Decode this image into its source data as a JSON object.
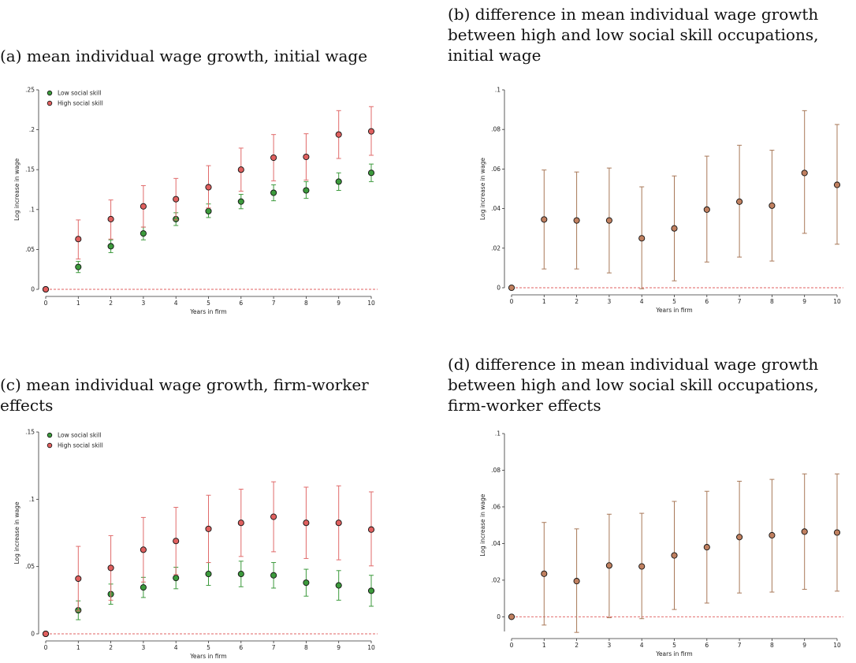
{
  "panels": {
    "a": {
      "title": "(a) mean individual wage growth, initial wage"
    },
    "b": {
      "title": "(b) difference in mean individual wage growth between high and low social skill occupations, initial wage"
    },
    "c": {
      "title": "(c) mean individual wage growth, firm-worker effects"
    },
    "d": {
      "title": "(d) difference in mean individual wage growth between high and low social skill occupations, firm-worker effects"
    }
  },
  "colors": {
    "low_fill": "#3c9a3c",
    "low_bar": "#3c9a3c",
    "high_fill": "#e0605f",
    "high_bar": "#e06a6a",
    "diff_fill": "#c08060",
    "diff_bar": "#a87858",
    "zero_line": "#e06060",
    "axis": "#333333"
  },
  "chart_data": [
    {
      "id": "a",
      "type": "scatter",
      "xlabel": "Years in firm",
      "ylabel": "Log increase in wage",
      "xlim": [
        0,
        10
      ],
      "ylim": [
        0,
        0.25
      ],
      "xticks": [
        0,
        1,
        2,
        3,
        4,
        5,
        6,
        7,
        8,
        9,
        10
      ],
      "yticks": [
        0,
        0.05,
        0.1,
        0.15,
        0.2,
        0.25
      ],
      "ytick_labels": [
        "0",
        ".05",
        ".1",
        ".15",
        ".2",
        ".25"
      ],
      "legend": {
        "position": "top-left",
        "entries": [
          "Low social skill",
          "High social skill"
        ]
      },
      "series": [
        {
          "name": "Low social skill",
          "color_key": "low",
          "x": [
            0,
            1,
            2,
            3,
            4,
            5,
            6,
            7,
            8,
            9,
            10
          ],
          "y": [
            0,
            0.028,
            0.054,
            0.07,
            0.088,
            0.098,
            0.11,
            0.121,
            0.124,
            0.135,
            0.146
          ],
          "lo": [
            null,
            0.021,
            0.046,
            0.062,
            0.08,
            0.09,
            0.101,
            0.111,
            0.114,
            0.124,
            0.135
          ],
          "hi": [
            null,
            0.035,
            0.062,
            0.078,
            0.096,
            0.107,
            0.119,
            0.131,
            0.135,
            0.146,
            0.157
          ]
        },
        {
          "name": "High social skill",
          "color_key": "high",
          "x": [
            0,
            1,
            2,
            3,
            4,
            5,
            6,
            7,
            8,
            9,
            10
          ],
          "y": [
            0,
            0.063,
            0.088,
            0.104,
            0.113,
            0.128,
            0.15,
            0.165,
            0.166,
            0.194,
            0.198
          ],
          "lo": [
            null,
            0.038,
            0.063,
            0.078,
            0.087,
            0.102,
            0.123,
            0.136,
            0.137,
            0.164,
            0.168
          ],
          "hi": [
            null,
            0.087,
            0.112,
            0.13,
            0.139,
            0.155,
            0.177,
            0.194,
            0.195,
            0.224,
            0.229
          ]
        }
      ]
    },
    {
      "id": "b",
      "type": "scatter",
      "xlabel": "Years in firm",
      "ylabel": "Log increase in wage",
      "xlim": [
        0,
        10
      ],
      "ylim": [
        0,
        0.1
      ],
      "xticks": [
        0,
        1,
        2,
        3,
        4,
        5,
        6,
        7,
        8,
        9,
        10
      ],
      "yticks": [
        0,
        0.02,
        0.04,
        0.06,
        0.08,
        0.1
      ],
      "ytick_labels": [
        "0",
        ".02",
        ".04",
        ".06",
        ".08",
        ".1"
      ],
      "series": [
        {
          "color_key": "diff",
          "x": [
            0,
            1,
            2,
            3,
            4,
            5,
            6,
            7,
            8,
            9,
            10
          ],
          "y": [
            0,
            0.0345,
            0.034,
            0.034,
            0.025,
            0.03,
            0.0395,
            0.0435,
            0.0415,
            0.058,
            0.052
          ],
          "lo": [
            null,
            0.0095,
            0.0095,
            0.0075,
            -0.0005,
            0.0035,
            0.013,
            0.0155,
            0.0135,
            0.0275,
            0.022
          ],
          "hi": [
            null,
            0.0595,
            0.0585,
            0.0605,
            0.051,
            0.0565,
            0.0665,
            0.072,
            0.0695,
            0.0895,
            0.0825
          ]
        }
      ]
    },
    {
      "id": "c",
      "type": "scatter",
      "xlabel": "Years in firm",
      "ylabel": "Log increase in wage",
      "xlim": [
        0,
        10
      ],
      "ylim": [
        0,
        0.15
      ],
      "xticks": [
        0,
        1,
        2,
        3,
        4,
        5,
        6,
        7,
        8,
        9,
        10
      ],
      "yticks": [
        0,
        0.05,
        0.1,
        0.15
      ],
      "ytick_labels": [
        "0",
        ".05",
        ".1",
        ".15"
      ],
      "legend": {
        "position": "top-left",
        "entries": [
          "Low social skill",
          "High social skill"
        ]
      },
      "series": [
        {
          "name": "Low social skill",
          "color_key": "low",
          "x": [
            0,
            1,
            2,
            3,
            4,
            5,
            6,
            7,
            8,
            9,
            10
          ],
          "y": [
            0,
            0.0175,
            0.0295,
            0.0345,
            0.0415,
            0.0445,
            0.0445,
            0.0435,
            0.038,
            0.036,
            0.032
          ],
          "lo": [
            null,
            0.0105,
            0.022,
            0.027,
            0.0335,
            0.036,
            0.035,
            0.034,
            0.028,
            0.025,
            0.0205
          ],
          "hi": [
            null,
            0.0245,
            0.037,
            0.042,
            0.0495,
            0.053,
            0.054,
            0.053,
            0.048,
            0.047,
            0.0435
          ]
        },
        {
          "name": "High social skill",
          "color_key": "high",
          "x": [
            0,
            1,
            2,
            3,
            4,
            5,
            6,
            7,
            8,
            9,
            10
          ],
          "y": [
            0,
            0.041,
            0.049,
            0.0625,
            0.069,
            0.078,
            0.0825,
            0.087,
            0.0825,
            0.0825,
            0.0775
          ],
          "lo": [
            null,
            0.017,
            0.025,
            0.0385,
            0.044,
            0.053,
            0.0575,
            0.061,
            0.056,
            0.055,
            0.0505
          ],
          "hi": [
            null,
            0.065,
            0.073,
            0.0865,
            0.094,
            0.103,
            0.1075,
            0.113,
            0.109,
            0.11,
            0.1055
          ]
        }
      ]
    },
    {
      "id": "d",
      "type": "scatter",
      "xlabel": "Years in firm",
      "ylabel": "Log increase in wage",
      "xlim": [
        0,
        10
      ],
      "ylim": [
        -0.008,
        0.1
      ],
      "xticks": [
        0,
        1,
        2,
        3,
        4,
        5,
        6,
        7,
        8,
        9,
        10
      ],
      "yticks": [
        0,
        0.02,
        0.04,
        0.06,
        0.08,
        0.1
      ],
      "ytick_labels": [
        "0",
        ".02",
        ".04",
        ".06",
        ".08",
        ".1"
      ],
      "series": [
        {
          "color_key": "diff",
          "x": [
            0,
            1,
            2,
            3,
            4,
            5,
            6,
            7,
            8,
            9,
            10
          ],
          "y": [
            0,
            0.0235,
            0.0195,
            0.028,
            0.0275,
            0.0335,
            0.038,
            0.0435,
            0.0445,
            0.0465,
            0.046
          ],
          "lo": [
            null,
            -0.0045,
            -0.0085,
            -0.0005,
            -0.001,
            0.004,
            0.0075,
            0.013,
            0.0135,
            0.015,
            0.014
          ],
          "hi": [
            null,
            0.0515,
            0.048,
            0.056,
            0.0565,
            0.063,
            0.0685,
            0.074,
            0.075,
            0.078,
            0.078
          ]
        }
      ]
    }
  ]
}
